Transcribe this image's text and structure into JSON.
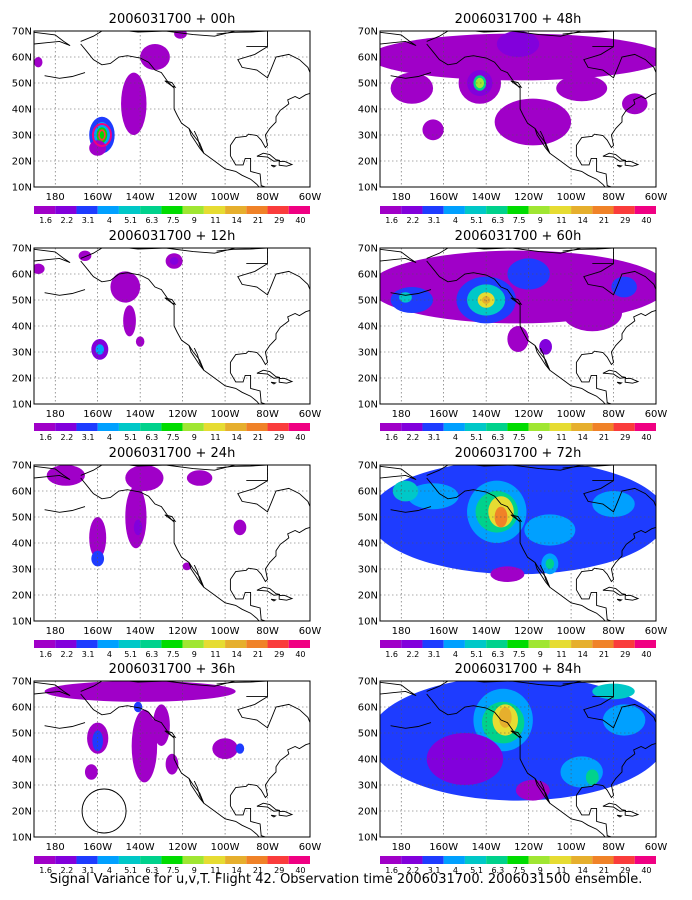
{
  "footer": "Signal Variance for u,v,T. Flight 42. Observation time 2006031700. 2006031500 ensemble.",
  "map": {
    "x_ticks": [
      "180",
      "160W",
      "140W",
      "120W",
      "100W",
      "80W",
      "60W"
    ],
    "y_ticks": [
      "10N",
      "20N",
      "30N",
      "40N",
      "50N",
      "60N",
      "70N"
    ],
    "lon_range": [
      -190,
      -60
    ],
    "lat_range": [
      10,
      70
    ]
  },
  "colorbar": {
    "labels": [
      "1.6",
      "2.2",
      "3.1",
      "4",
      "5.1",
      "6.3",
      "7.5",
      "9",
      "11",
      "14",
      "21",
      "29",
      "40"
    ],
    "colors": [
      "#a000c8",
      "#8200dc",
      "#1e3cff",
      "#00a0ff",
      "#00c8c8",
      "#00d28c",
      "#00dc00",
      "#a0e632",
      "#e6dc32",
      "#e6af2d",
      "#f08228",
      "#fa3c3c",
      "#f00082"
    ]
  },
  "panels": [
    {
      "title": "2006031700 + 00h",
      "level": 0
    },
    {
      "title": "2006031700 + 12h",
      "level": 1
    },
    {
      "title": "2006031700 + 24h",
      "level": 2
    },
    {
      "title": "2006031700 + 36h",
      "level": 3
    },
    {
      "title": "2006031700 + 48h",
      "level": 4
    },
    {
      "title": "2006031700 + 60h",
      "level": 5
    },
    {
      "title": "2006031700 + 72h",
      "level": 6
    },
    {
      "title": "2006031700 + 84h",
      "level": 7
    }
  ]
}
